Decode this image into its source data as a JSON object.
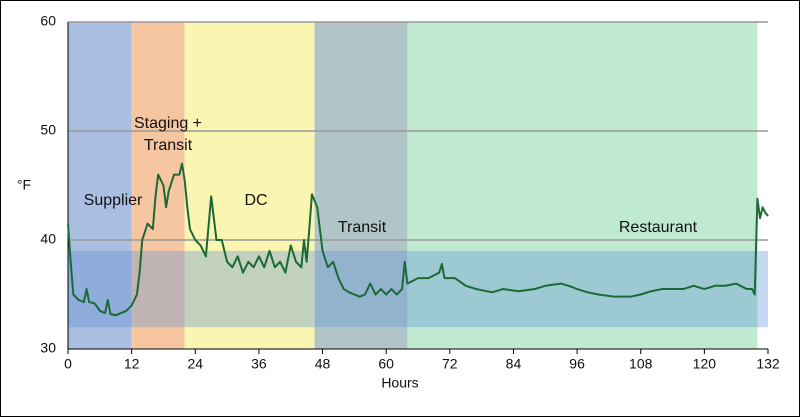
{
  "chart_data": {
    "type": "line",
    "x_label": "Hours",
    "y_label": "°F",
    "xlim": [
      0,
      132
    ],
    "xticks": [
      0,
      12,
      24,
      36,
      48,
      60,
      72,
      84,
      96,
      108,
      120,
      132
    ],
    "ylim": [
      30,
      60
    ],
    "yticks": [
      30,
      40,
      50,
      60
    ],
    "grid": true,
    "regions": [
      {
        "label": [
          "Supplier"
        ],
        "start": 0,
        "end": 12,
        "color": "#a9bee0"
      },
      {
        "label": [
          "Staging +",
          "Transit"
        ],
        "start": 12,
        "end": 22,
        "color": "#f6c6a0"
      },
      {
        "label": [
          "DC"
        ],
        "start": 22,
        "end": 46.5,
        "color": "#fbf5b2"
      },
      {
        "label": [
          "Transit"
        ],
        "start": 46.5,
        "end": 64,
        "color": "#b1c5c9"
      },
      {
        "label": [
          "Restaurant"
        ],
        "start": 64,
        "end": 130,
        "color": "#c0e9d2"
      }
    ],
    "band": {
      "from": 32,
      "to": 39,
      "color": "#5b8fd6"
    },
    "series": [
      {
        "color": "#1b6a35",
        "x": [
          0,
          0.5,
          1,
          2,
          3,
          3.5,
          4,
          5,
          6,
          7,
          7.5,
          8,
          9,
          10,
          11,
          12,
          13,
          13.5,
          14,
          15,
          16,
          16.5,
          17,
          18,
          18.5,
          19,
          20,
          21,
          21.5,
          22,
          22.5,
          23,
          24,
          25,
          26,
          27,
          28,
          29,
          30,
          31,
          32,
          33,
          34,
          35,
          36,
          37,
          38,
          39,
          40,
          41,
          42,
          43,
          44,
          44.5,
          45,
          45.5,
          46,
          47,
          47.5,
          48,
          49,
          50,
          51,
          52,
          53,
          54,
          55,
          56,
          57,
          58,
          59,
          60,
          61,
          62,
          63,
          63.5,
          64,
          66,
          68,
          70,
          70.5,
          71,
          73,
          75,
          77,
          80,
          82,
          85,
          88,
          90,
          93,
          95,
          96,
          98,
          100,
          103,
          106,
          108,
          110,
          112,
          114,
          116,
          118,
          120,
          122,
          124,
          126,
          128,
          129,
          129.5,
          130,
          130.5,
          131,
          131.5,
          132
        ],
        "values": [
          41.5,
          38,
          35,
          34.5,
          34.3,
          35.5,
          34.3,
          34.2,
          33.5,
          33.3,
          34.5,
          33.2,
          33.1,
          33.3,
          33.5,
          34,
          35,
          37,
          40,
          41.5,
          41,
          44,
          46,
          45,
          43,
          44.5,
          46,
          46,
          47,
          45.5,
          43,
          41,
          40,
          39.5,
          38.5,
          44,
          40,
          40,
          38,
          37.5,
          38.5,
          37,
          38,
          37.5,
          38.5,
          37.5,
          39,
          37.5,
          38,
          37,
          39.5,
          38,
          37.5,
          40,
          38,
          41,
          44.2,
          43,
          41,
          39,
          37.5,
          38,
          36.5,
          35.5,
          35.2,
          35,
          34.8,
          35,
          36,
          35,
          35.5,
          35,
          35.5,
          35,
          35.5,
          38,
          36,
          36.5,
          36.5,
          37,
          37.8,
          36.5,
          36.5,
          35.8,
          35.5,
          35.2,
          35.5,
          35.3,
          35.5,
          35.8,
          36,
          35.7,
          35.5,
          35.2,
          35,
          34.8,
          34.8,
          35,
          35.3,
          35.5,
          35.5,
          35.5,
          35.8,
          35.5,
          35.8,
          35.8,
          36,
          35.5,
          35.5,
          35,
          43.8,
          42,
          43,
          42.5,
          42.2
        ]
      }
    ]
  }
}
